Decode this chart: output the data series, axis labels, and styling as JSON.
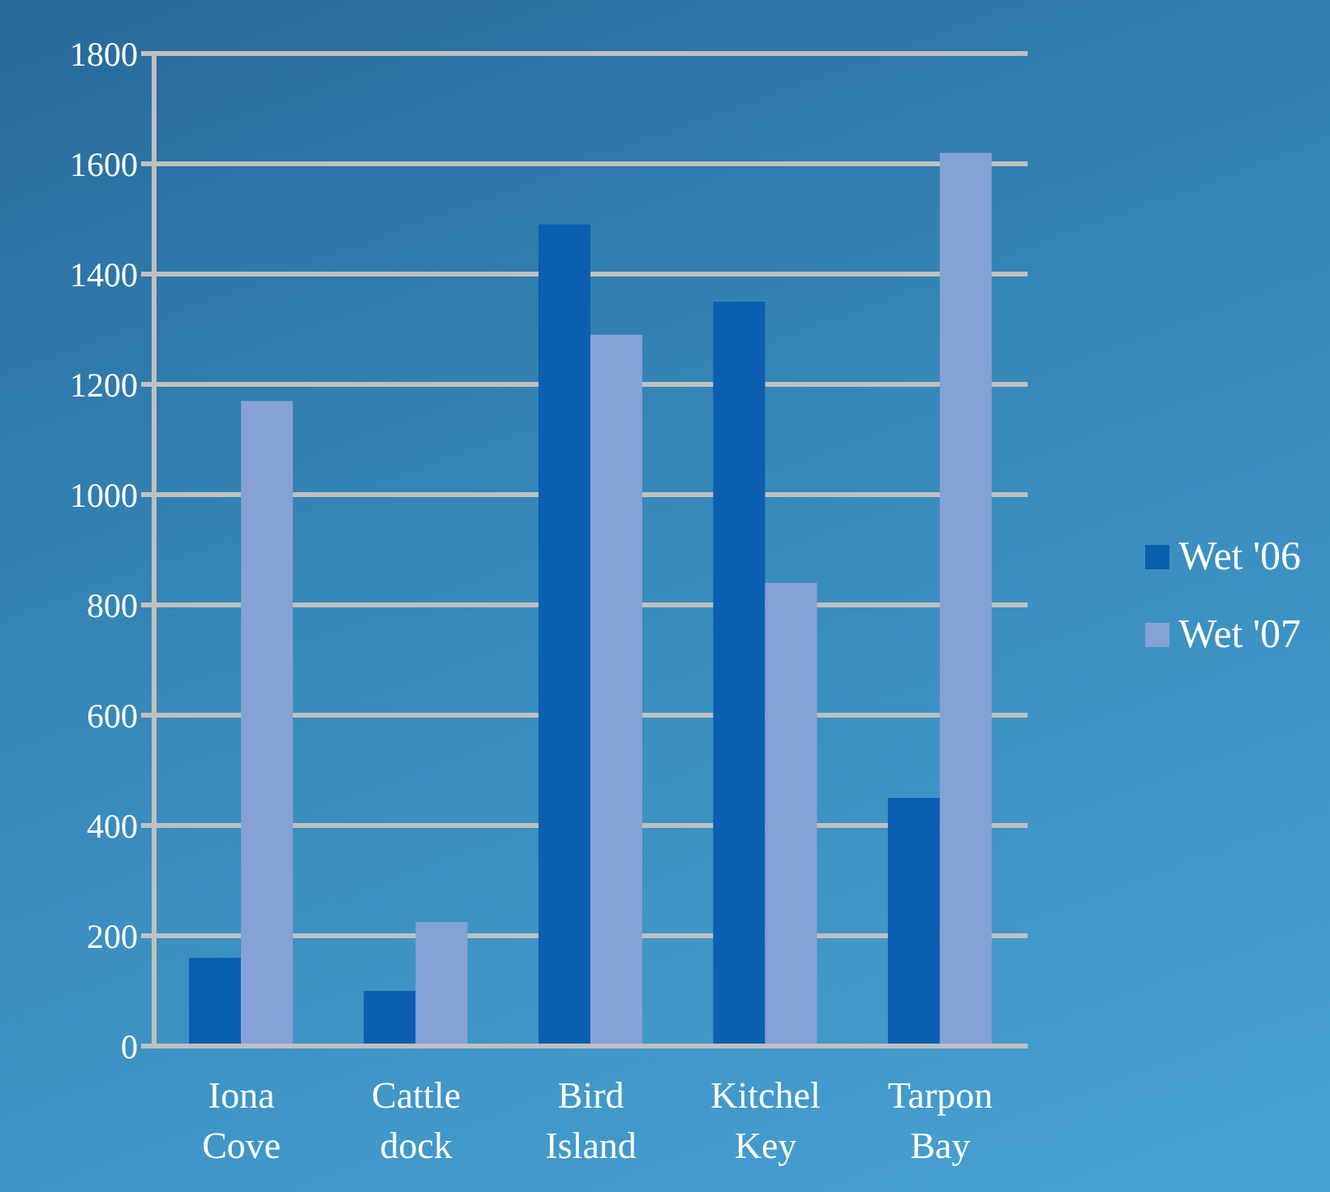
{
  "chart_data": {
    "type": "bar",
    "categories": [
      "Iona Cove",
      "Cattle dock",
      "Bird Island",
      "Kitchel Key",
      "Tarpon Bay"
    ],
    "series": [
      {
        "name": "Wet '06",
        "color": "#0b5fb0",
        "values": [
          160,
          100,
          1490,
          1350,
          450
        ]
      },
      {
        "name": "Wet '07",
        "color": "#85a1d6",
        "values": [
          1170,
          225,
          1290,
          840,
          1620
        ]
      }
    ],
    "ylim": [
      0,
      1800
    ],
    "yticks": [
      0,
      200,
      400,
      600,
      800,
      1000,
      1200,
      1400,
      1600,
      1800
    ],
    "grid": "y",
    "legend": "right"
  }
}
